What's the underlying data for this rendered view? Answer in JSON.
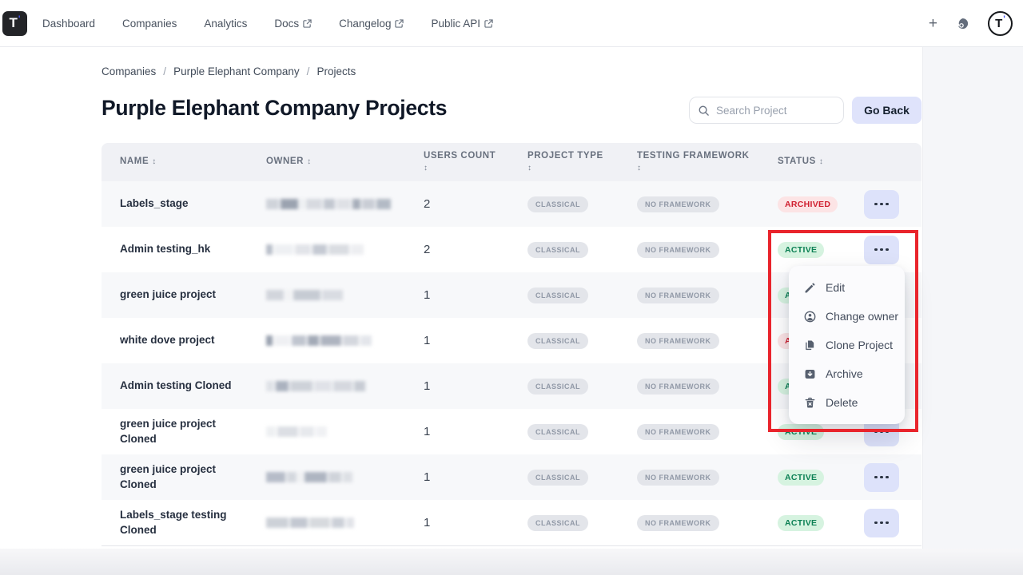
{
  "topbar": {
    "logo": {
      "t": "T",
      "prime": "'"
    },
    "nav": [
      {
        "label": "Dashboard",
        "external": false
      },
      {
        "label": "Companies",
        "external": false
      },
      {
        "label": "Analytics",
        "external": false
      },
      {
        "label": "Docs",
        "external": true
      },
      {
        "label": "Changelog",
        "external": true
      },
      {
        "label": "Public API",
        "external": true
      }
    ],
    "actions": {
      "add_label": "+",
      "support_icon": "support-icon",
      "avatar_icon": "account-logo-avatar"
    }
  },
  "breadcrumb": {
    "items": [
      "Companies",
      "Purple Elephant Company",
      "Projects"
    ],
    "separator": "/"
  },
  "page": {
    "title": "Purple Elephant Company Projects",
    "go_back_label": "Go Back"
  },
  "search": {
    "placeholder": "Search Project"
  },
  "table": {
    "sort_glyph": "↕",
    "columns": [
      {
        "label": "NAME",
        "wrap": false
      },
      {
        "label": "OWNER",
        "wrap": false
      },
      {
        "label": "USERS COUNT",
        "wrap": true
      },
      {
        "label": "PROJECT TYPE",
        "wrap": true
      },
      {
        "label": "TESTING FRAMEWORK",
        "wrap": true
      },
      {
        "label": "STATUS",
        "wrap": false
      }
    ],
    "rows": [
      {
        "name": "Labels_stage",
        "owner_redacted": true,
        "users_count": "2",
        "project_type": "CLASSICAL",
        "testing_framework": "NO FRAMEWORK",
        "status": "ARCHIVED"
      },
      {
        "name": "Admin testing_hk",
        "owner_redacted": true,
        "users_count": "2",
        "project_type": "CLASSICAL",
        "testing_framework": "NO FRAMEWORK",
        "status": "ACTIVE"
      },
      {
        "name": "green juice project",
        "owner_redacted": true,
        "users_count": "1",
        "project_type": "CLASSICAL",
        "testing_framework": "NO FRAMEWORK",
        "status": "ACTIVE"
      },
      {
        "name": "white dove project",
        "owner_redacted": true,
        "users_count": "1",
        "project_type": "CLASSICAL",
        "testing_framework": "NO FRAMEWORK",
        "status": "ARCHIVED"
      },
      {
        "name": "Admin testing Cloned",
        "owner_redacted": true,
        "users_count": "1",
        "project_type": "CLASSICAL",
        "testing_framework": "NO FRAMEWORK",
        "status": "ACTIVE"
      },
      {
        "name": "green juice project Cloned",
        "owner_redacted": true,
        "users_count": "1",
        "project_type": "CLASSICAL",
        "testing_framework": "NO FRAMEWORK",
        "status": "ACTIVE"
      },
      {
        "name": "green juice project Cloned",
        "owner_redacted": true,
        "users_count": "1",
        "project_type": "CLASSICAL",
        "testing_framework": "NO FRAMEWORK",
        "status": "ACTIVE"
      },
      {
        "name": "Labels_stage testing Cloned",
        "owner_redacted": true,
        "users_count": "1",
        "project_type": "CLASSICAL",
        "testing_framework": "NO FRAMEWORK",
        "status": "ACTIVE"
      }
    ]
  },
  "context_menu": {
    "items": [
      {
        "label": "Edit",
        "icon": "pencil-icon"
      },
      {
        "label": "Change owner",
        "icon": "user-circle-icon"
      },
      {
        "label": "Clone Project",
        "icon": "copy-icon"
      },
      {
        "label": "Archive",
        "icon": "archive-box-icon"
      },
      {
        "label": "Delete",
        "icon": "trash-icon"
      }
    ]
  },
  "annotation": {
    "shape": "rectangle",
    "color": "#e9242c"
  },
  "colors": {
    "active_bg": "#d6f3e0",
    "active_text": "#0d8155",
    "archived_bg": "#fce4e5",
    "archived_text": "#d02030",
    "pill_bg": "#e3e5ea",
    "pill_text": "#9199a7",
    "accent_button_bg": "#dde2fa",
    "go_back_bg": "#dfe3fb",
    "annotation_red": "#e9242c"
  }
}
